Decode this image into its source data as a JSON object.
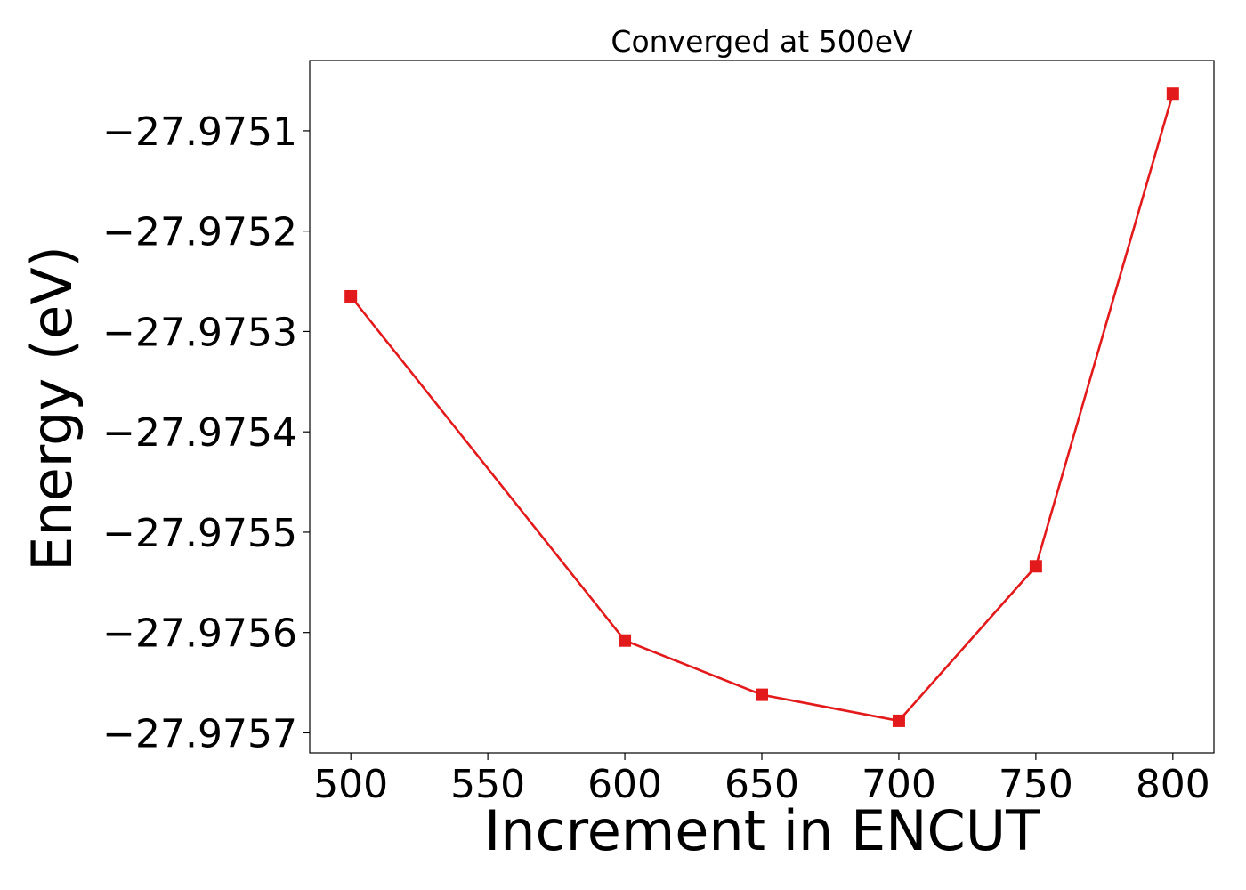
{
  "chart_data": {
    "type": "line",
    "title": "Converged at 500eV",
    "xlabel": "Increment in ENCUT",
    "ylabel": "Energy (eV)",
    "xlim": [
      485,
      815
    ],
    "ylim": [
      -27.97572,
      -27.97503
    ],
    "x_ticks": [
      500,
      550,
      600,
      650,
      700,
      750,
      800
    ],
    "x_tick_labels": [
      "500",
      "550",
      "600",
      "650",
      "700",
      "750",
      "800"
    ],
    "y_ticks": [
      -27.9751,
      -27.9752,
      -27.9753,
      -27.9754,
      -27.9755,
      -27.9756,
      -27.9757
    ],
    "y_tick_labels": [
      "−27.9751",
      "−27.9752",
      "−27.9753",
      "−27.9754",
      "−27.9755",
      "−27.9756",
      "−27.9757"
    ],
    "grid": false,
    "series": [
      {
        "color": "#e31a1c",
        "marker": "square",
        "x": [
          500,
          600,
          650,
          700,
          750,
          800
        ],
        "y": [
          -27.975265,
          -27.975608,
          -27.975662,
          -27.975688,
          -27.975534,
          -27.975063
        ]
      }
    ]
  }
}
